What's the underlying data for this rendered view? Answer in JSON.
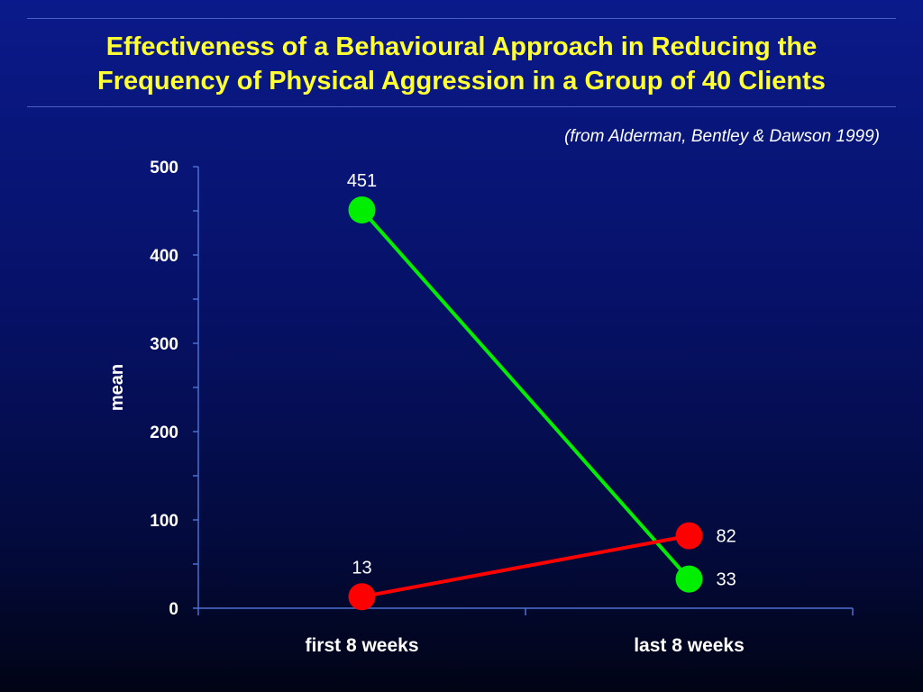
{
  "header": {
    "title_line1": "Effectiveness of a Behavioural Approach in Reducing the",
    "title_line2": "Frequency of Physical Aggression in a Group of 40 Clients",
    "source": "(from Alderman, Bentley & Dawson 1999)"
  },
  "colors": {
    "title": "#ffff33",
    "background": "#061166",
    "axis": "#4a6fd0"
  },
  "chart_data": {
    "type": "line",
    "title": "Effectiveness of a Behavioural Approach in Reducing the Frequency of Physical Aggression in a Group of 40 Clients",
    "xlabel": "",
    "ylabel": "mean",
    "ylim": [
      0,
      500
    ],
    "yticks": [
      0,
      100,
      200,
      300,
      400,
      500
    ],
    "grid": false,
    "categories": [
      "first 8 weeks",
      "last 8 weeks"
    ],
    "series": [
      {
        "color": "#00ee00",
        "values": [
          451,
          33
        ],
        "labels": [
          "451",
          "33"
        ]
      },
      {
        "color": "#ff0000",
        "values": [
          13,
          82
        ],
        "labels": [
          "13",
          "82"
        ]
      }
    ]
  }
}
